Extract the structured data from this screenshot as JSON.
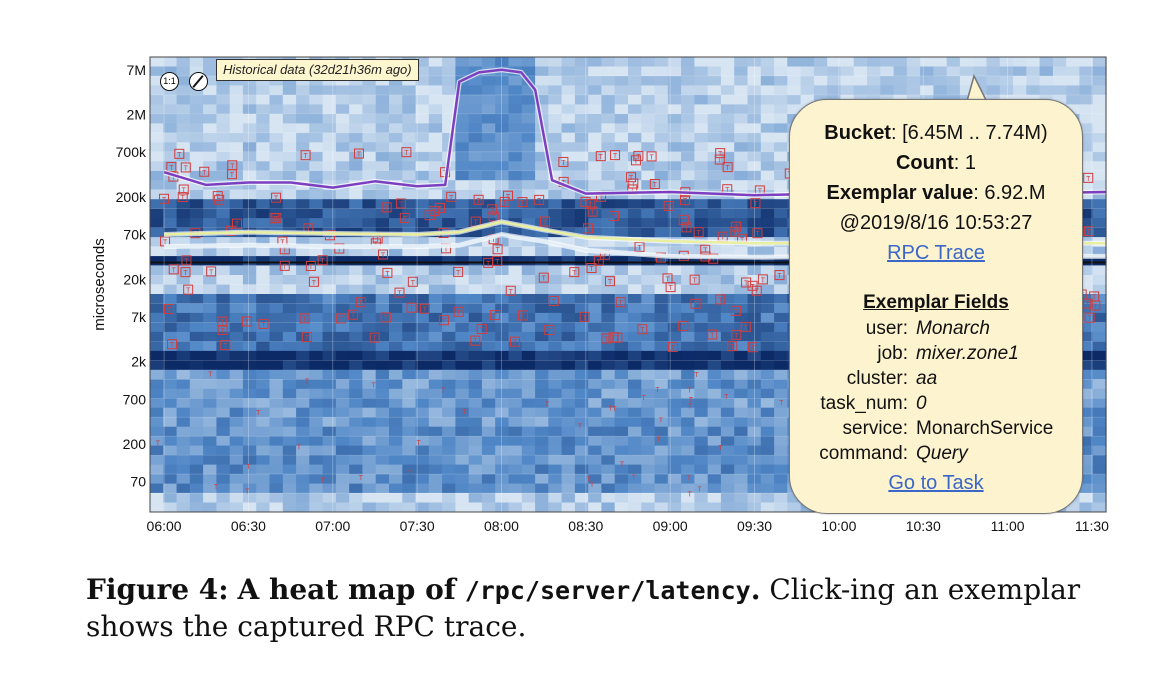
{
  "chart_data": {
    "type": "heatmap",
    "ylabel": "microseconds",
    "y_scale": "log",
    "y_ticks": [
      "7M",
      "2M",
      "700k",
      "200k",
      "70k",
      "20k",
      "7k",
      "2k",
      "700",
      "200",
      "70"
    ],
    "x_ticks": [
      "06:00",
      "06:30",
      "07:00",
      "07:30",
      "08:00",
      "08:30",
      "09:00",
      "09:30",
      "10:00",
      "10:30",
      "11:00",
      "11:30"
    ],
    "series": [
      {
        "name": "upper percentile",
        "color": "#7b3fc0",
        "times": [
          "06:00",
          "06:15",
          "06:30",
          "06:45",
          "07:00",
          "07:15",
          "07:30",
          "07:40",
          "07:45",
          "07:52",
          "08:00",
          "08:07",
          "08:12",
          "08:18",
          "08:30",
          "09:00",
          "09:30",
          "10:00",
          "11:00",
          "11:35"
        ],
        "values": [
          400000,
          280000,
          300000,
          300000,
          260000,
          310000,
          270000,
          280000,
          5000000,
          6500000,
          7000000,
          6500000,
          4000000,
          320000,
          220000,
          230000,
          210000,
          220000,
          220000,
          230000
        ]
      },
      {
        "name": "median",
        "color": "#e8f0a0",
        "times": [
          "06:00",
          "06:30",
          "07:00",
          "07:30",
          "07:45",
          "08:00",
          "08:15",
          "08:30",
          "09:00",
          "09:30",
          "10:00",
          "11:35"
        ],
        "values": [
          70000,
          75000,
          72000,
          70000,
          75000,
          100000,
          80000,
          65000,
          58000,
          55000,
          55000,
          55000
        ]
      },
      {
        "name": "lower percentile",
        "color": "#e3eef7",
        "times": [
          "06:00",
          "06:30",
          "07:00",
          "07:30",
          "07:45",
          "08:00",
          "08:15",
          "08:30",
          "09:00",
          "09:30",
          "10:00",
          "11:35"
        ],
        "values": [
          50000,
          52000,
          50000,
          50000,
          52000,
          70000,
          58000,
          45000,
          38000,
          37000,
          38000,
          38000
        ]
      }
    ],
    "bands": [
      {
        "range": [
          30000,
          35000
        ],
        "shade": 0.95
      },
      {
        "range": [
          1500,
          3000
        ],
        "shade": 1.0
      },
      {
        "range": [
          70000,
          200000
        ],
        "shade": 0.75
      },
      {
        "range": [
          3000,
          15000
        ],
        "shade": 0.6
      },
      {
        "range": [
          300,
          1500
        ],
        "shade": 0.4
      },
      {
        "range": [
          50,
          300
        ],
        "shade": 0.45
      }
    ],
    "exemplar_marker": "T",
    "colors": {
      "dark": "#0c2a66",
      "mid": "#4f86c6",
      "light": "#d7e5f3",
      "exemplar": "#d43c3c"
    }
  },
  "ui": {
    "historical_badge": "Historical data (32d21h36m ago)",
    "zoom_control": "1:1",
    "pen_control_icon": "pencil-icon"
  },
  "tooltip": {
    "bucket_label": "Bucket",
    "bucket_value": ": [6.45M .. 7.74M)",
    "count_label": "Count",
    "count_value": ": 1",
    "exemplar_label": "Exemplar value",
    "exemplar_value": ": 6.92.M",
    "timestamp": "@2019/8/16 10:53:27",
    "rpc_link": "RPC Trace",
    "fields_heading": "Exemplar Fields",
    "fields": [
      {
        "key": "user:",
        "value": "Monarch",
        "italic": true
      },
      {
        "key": "job:",
        "value": "mixer.zone1",
        "italic": true
      },
      {
        "key": "cluster:",
        "value": "aa",
        "italic": true
      },
      {
        "key": "task_num:",
        "value": "0",
        "italic": true
      },
      {
        "key": "service:",
        "value": "MonarchService",
        "italic": false
      },
      {
        "key": "command:",
        "value": "Query",
        "italic": true
      }
    ],
    "task_link": "Go to Task"
  },
  "caption": {
    "label": "Figure 4:",
    "title_pre": "A heat map of",
    "title_code": "/rpc/server/latency",
    "title_end": ".",
    "body": "Click-ing an exemplar shows the captured RPC trace."
  }
}
